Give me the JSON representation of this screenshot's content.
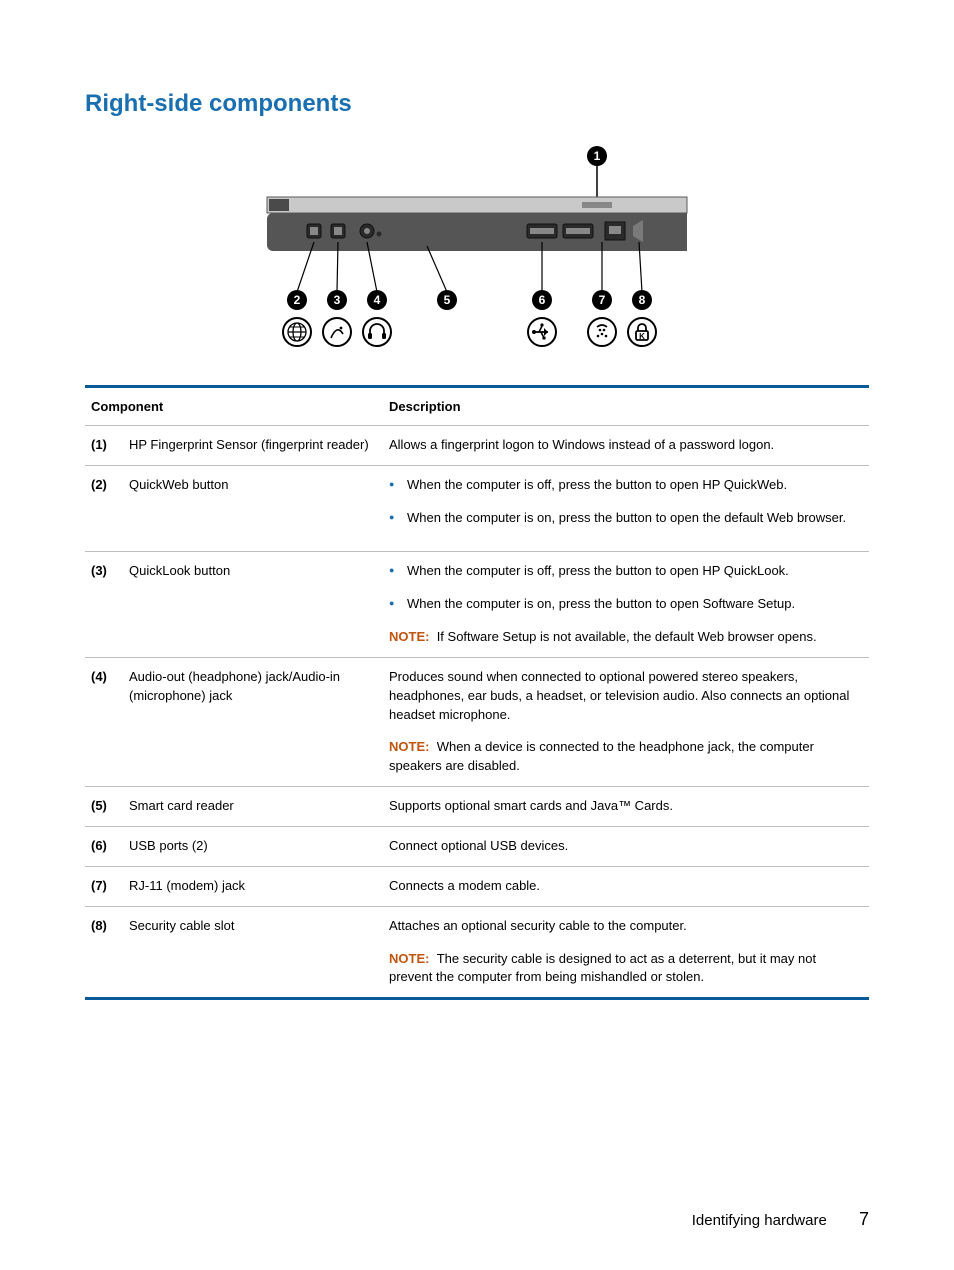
{
  "section_title": "Right-side components",
  "table": {
    "headers": {
      "component": "Component",
      "description": "Description"
    },
    "note_label": "NOTE:",
    "rows": [
      {
        "idx": "(1)",
        "component": "HP Fingerprint Sensor (fingerprint reader)",
        "desc_para": "Allows a fingerprint logon to Windows instead of a password logon."
      },
      {
        "idx": "(2)",
        "component": "QuickWeb button",
        "bullets": [
          "When the computer is off, press the button to open HP QuickWeb.",
          "When the computer is on, press the button to open the default Web browser."
        ]
      },
      {
        "idx": "(3)",
        "component": "QuickLook button",
        "bullets": [
          "When the computer is off, press the button to open HP QuickLook.",
          "When the computer is on, press the button to open Software Setup."
        ],
        "note": "If Software Setup is not available, the default Web browser opens."
      },
      {
        "idx": "(4)",
        "component": "Audio-out (headphone) jack/Audio-in (microphone) jack",
        "desc_para": "Produces sound when connected to optional powered stereo speakers, headphones, ear buds, a headset, or television audio. Also connects an optional headset microphone.",
        "note": "When a device is connected to the headphone jack, the computer speakers are disabled."
      },
      {
        "idx": "(5)",
        "component": "Smart card reader",
        "desc_para": "Supports optional smart cards and Java™ Cards."
      },
      {
        "idx": "(6)",
        "component": "USB ports (2)",
        "desc_para": "Connect optional USB devices."
      },
      {
        "idx": "(7)",
        "component": "RJ-11 (modem) jack",
        "desc_para": "Connects a modem cable."
      },
      {
        "idx": "(8)",
        "component": "Security cable slot",
        "desc_para": "Attaches an optional security cable to the computer.",
        "note": "The security cable is designed to act as a deterrent, but it may not prevent the computer from being mishandled or stolen."
      }
    ]
  },
  "footer": {
    "section": "Identifying hardware",
    "page": "7"
  },
  "colors": {
    "heading": "#1a6fb0",
    "rule": "#0a5a99",
    "row_border": "#bfbfbf",
    "bullet": "#1a6fb0",
    "note": "#c05510",
    "text": "#000000",
    "bg": "#ffffff"
  },
  "diagram": {
    "callouts": [
      "1",
      "2",
      "3",
      "4",
      "5",
      "6",
      "7",
      "8"
    ],
    "icons": [
      "globe",
      "quicklook",
      "headphone",
      "usb",
      "modem",
      "lock"
    ]
  }
}
